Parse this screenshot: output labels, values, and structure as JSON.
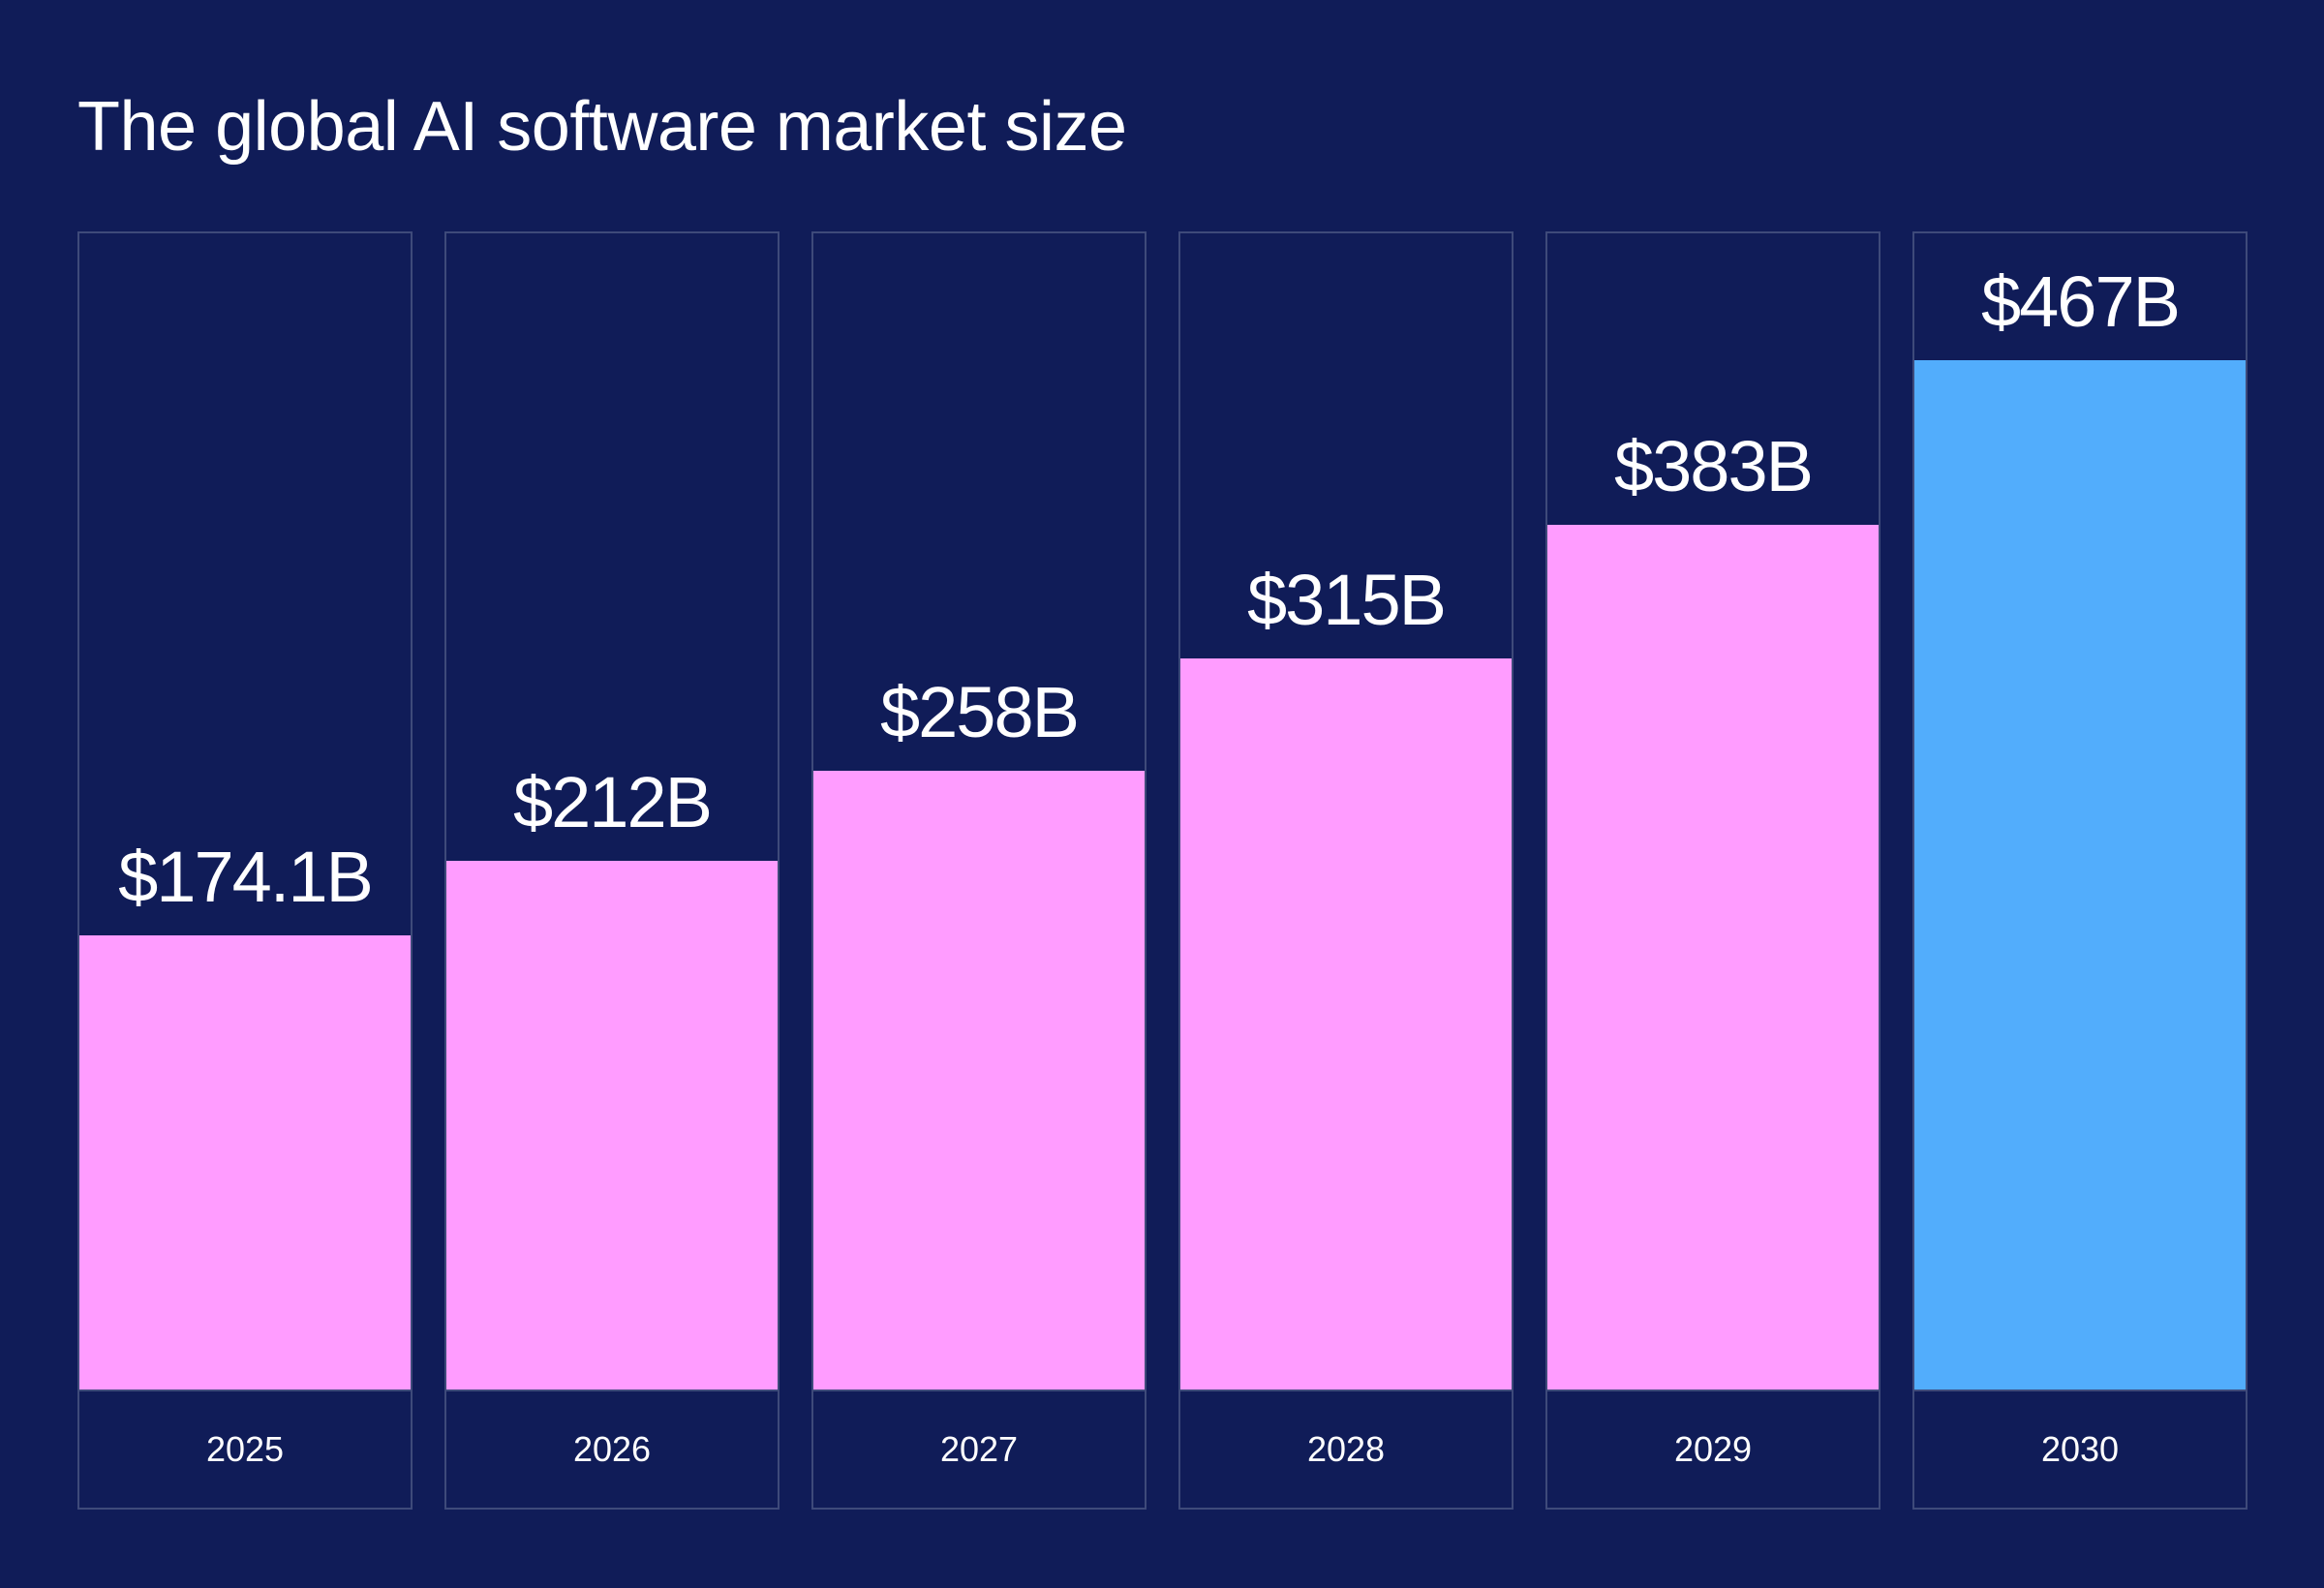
{
  "chart_data": {
    "type": "bar",
    "title": "The global AI software market size",
    "categories": [
      "2025",
      "2026",
      "2027",
      "2028",
      "2029",
      "2030"
    ],
    "values": [
      174.1,
      212,
      258,
      315,
      383,
      467
    ],
    "value_labels": [
      "$174.1B",
      "$212B",
      "$258B",
      "$315B",
      "$383B",
      "$467B"
    ],
    "unit": "USD billions",
    "grid": false,
    "legend": "none",
    "colors": {
      "background": "#101c58",
      "bar": "#ff9cff",
      "highlight_bar": "#52adfc",
      "border": "#3e4a7a",
      "text": "#ffffff"
    },
    "highlight_index": 5
  }
}
